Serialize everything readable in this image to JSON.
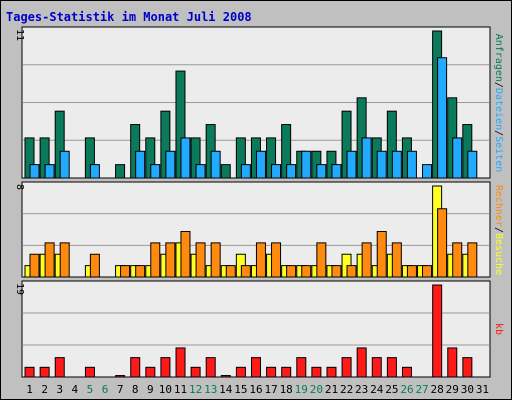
{
  "title": "Tages-Statistik im Monat Juli 2008",
  "colors": {
    "frame_bg": "#c0c0c0",
    "panel_bg": "#ececec",
    "grid": "#9a9a9a",
    "title": "#0000cc",
    "anfragen": "#0a7a5a",
    "dateien": "#22aaff",
    "seiten": "#22aaff",
    "besuche": "#ffff22",
    "rechner": "#ff8a10",
    "kb": "#ff1a1a",
    "weekday": "#000000",
    "weekend": "#0a7a5a"
  },
  "chart_data": [
    {
      "type": "bar",
      "panel": "top",
      "ymax_label": "11",
      "ylim": [
        0,
        11
      ],
      "categories": [
        "1",
        "2",
        "3",
        "4",
        "5",
        "6",
        "7",
        "8",
        "9",
        "10",
        "11",
        "12",
        "13",
        "14",
        "15",
        "16",
        "17",
        "18",
        "19",
        "20",
        "21",
        "22",
        "23",
        "24",
        "25",
        "26",
        "27",
        "28",
        "29",
        "30",
        "31"
      ],
      "legend": [
        {
          "text": "Anfragen",
          "color_key": "anfragen"
        },
        {
          "text": "Dateien",
          "color_key": "dateien"
        },
        {
          "text": "Seiten",
          "color_key": "seiten"
        }
      ],
      "series": [
        {
          "key": "anfragen",
          "values": [
            3,
            3,
            5,
            0,
            3,
            0,
            1,
            4,
            3,
            5,
            8,
            3,
            4,
            1,
            3,
            3,
            3,
            4,
            2,
            2,
            2,
            5,
            6,
            3,
            5,
            3,
            0,
            11,
            6,
            4,
            0
          ]
        },
        {
          "key": "dateien",
          "values": [
            1,
            1,
            2,
            0,
            1,
            0,
            0,
            2,
            1,
            2,
            3,
            1,
            2,
            0,
            1,
            2,
            1,
            1,
            2,
            1,
            1,
            2,
            3,
            2,
            2,
            2,
            1,
            9,
            3,
            2,
            0
          ]
        }
      ]
    },
    {
      "type": "bar",
      "panel": "middle",
      "ymax_label": "8",
      "ylim": [
        0,
        8
      ],
      "legend": [
        {
          "text": "Rechner",
          "color_key": "rechner"
        },
        {
          "text": "Besuche",
          "color_key": "besuche"
        }
      ],
      "series": [
        {
          "key": "besuche",
          "values": [
            1,
            2,
            2,
            0,
            1,
            0,
            1,
            1,
            1,
            2,
            3,
            2,
            1,
            1,
            2,
            1,
            2,
            1,
            1,
            1,
            1,
            2,
            2,
            1,
            2,
            1,
            1,
            8,
            2,
            2,
            0
          ]
        },
        {
          "key": "rechner",
          "values": [
            2,
            3,
            3,
            0,
            2,
            0,
            1,
            1,
            3,
            3,
            4,
            3,
            3,
            1,
            1,
            3,
            3,
            1,
            1,
            3,
            1,
            1,
            3,
            4,
            3,
            1,
            1,
            6,
            3,
            3,
            0
          ]
        }
      ]
    },
    {
      "type": "bar",
      "panel": "bottom",
      "ymax_label": "19",
      "ylim": [
        0,
        19
      ],
      "legend": [
        {
          "text": "kb",
          "color_key": "kb"
        }
      ],
      "series": [
        {
          "key": "kb",
          "values": [
            2,
            2,
            4,
            0,
            2,
            0,
            0.3,
            4,
            2,
            4,
            6,
            2,
            4,
            0.3,
            2,
            4,
            2,
            2,
            4,
            2,
            2,
            4,
            6,
            4,
            4,
            2,
            0,
            19,
            6,
            4,
            0
          ]
        }
      ]
    }
  ],
  "weekend_days": [
    "5",
    "6",
    "12",
    "13",
    "19",
    "20",
    "26",
    "27"
  ]
}
